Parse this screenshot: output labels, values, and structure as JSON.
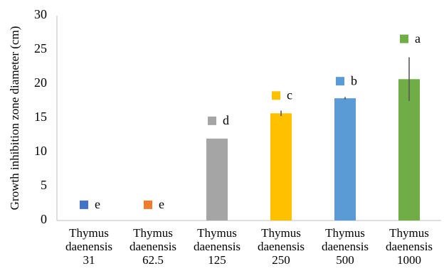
{
  "chart_data": {
    "type": "bar",
    "ylabel": "Growth inhibition zone diameter (cm)",
    "xlabel": "",
    "ylim": [
      0,
      30
    ],
    "yticks": [
      0,
      5,
      10,
      15,
      20,
      25,
      30
    ],
    "grid": false,
    "legend": "none",
    "categories": [
      [
        "Thymus",
        "daenensis",
        "31"
      ],
      [
        "Thymus",
        "daenensis",
        "62.5"
      ],
      [
        "Thymus",
        "daenensis",
        "125"
      ],
      [
        "Thymus",
        "daenensis",
        "250"
      ],
      [
        "Thymus",
        "daenensis",
        "500"
      ],
      [
        "Thymus",
        "daenensis",
        "1000"
      ]
    ],
    "values": [
      0,
      0,
      12.0,
      15.7,
      17.9,
      20.7
    ],
    "error": [
      0,
      0,
      0,
      0.4,
      0.2,
      3.2
    ],
    "letters": [
      "e",
      "e",
      "d",
      "c",
      "b",
      "a"
    ],
    "letter_positions": [
      2.3,
      2.3,
      14.6,
      18.3,
      20.4,
      26.6
    ],
    "colors": [
      "#4472C4",
      "#ED7D31",
      "#A5A5A5",
      "#FFC000",
      "#5B9BD5",
      "#70AD47"
    ]
  }
}
